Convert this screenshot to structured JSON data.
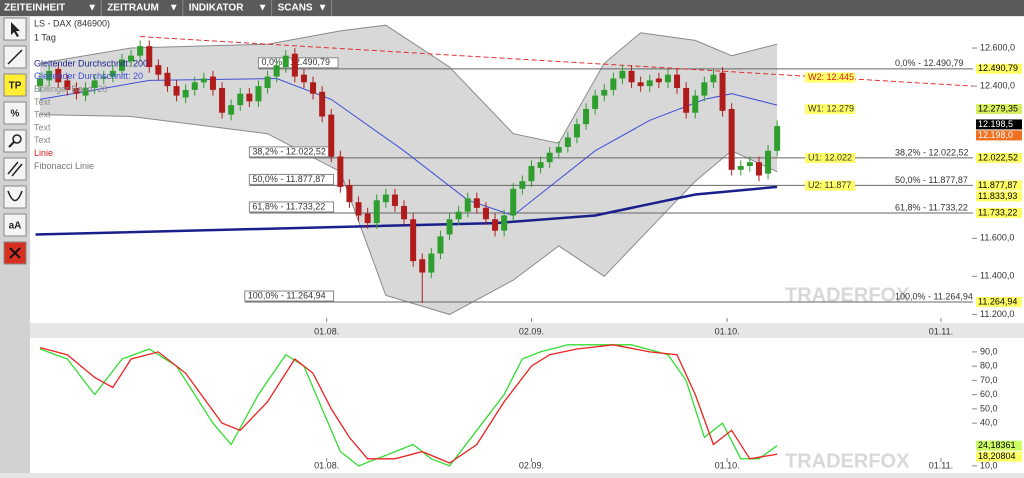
{
  "toolbar": {
    "menus": [
      "ZEITEINHEIT",
      "ZEITRAUM",
      "INDIKATOR",
      "SCANS"
    ],
    "arrow": "▼",
    "tools": [
      "TP",
      "%",
      "aA"
    ]
  },
  "watermark": "TRADERFOX",
  "chart_data": [
    {
      "type": "candlestick",
      "title": "LS - DAX (846900)",
      "subtitle": "1 Tag",
      "xlim": [
        -0.5,
        102.5
      ],
      "ylim": [
        11160,
        12760
      ],
      "xticks": [
        {
          "value": 31.5,
          "label": "01.08."
        },
        {
          "value": 54,
          "label": "02.09."
        },
        {
          "value": 75.5,
          "label": "01.10."
        },
        {
          "value": 99,
          "label": "01.11."
        }
      ],
      "yticks": [
        {
          "value": 12600,
          "label": "12.600,0"
        },
        {
          "value": 12400,
          "label": "12.400,0"
        },
        {
          "value": 11600,
          "label": "11.600,0"
        },
        {
          "value": 11400,
          "label": "11.400,0"
        },
        {
          "value": 11200,
          "label": "11.200,0"
        }
      ],
      "up_color": "#2e9e2e",
      "down_color": "#b01c1c",
      "candles": {
        "open": [
          12400,
          12430,
          12490,
          12430,
          12390,
          12350,
          12390,
          12440,
          12450,
          12480,
          12530,
          12560,
          12610,
          12510,
          12470,
          12400,
          12340,
          12380,
          12420,
          12450,
          12390,
          12250,
          12300,
          12360,
          12320,
          12390,
          12450,
          12500,
          12570,
          12460,
          12420,
          12370,
          12250,
          12030,
          11880,
          11790,
          11730,
          11680,
          11790,
          11830,
          11770,
          11700,
          11490,
          11420,
          11520,
          11620,
          11700,
          11740,
          11810,
          11760,
          11700,
          11640,
          11720,
          11860,
          11900,
          11970,
          12000,
          12050,
          12080,
          12130,
          12200,
          12280,
          12350,
          12380,
          12440,
          12480,
          12420,
          12400,
          12440,
          12420,
          12460,
          12390,
          12260,
          12350,
          12420,
          12470,
          12280,
          11960,
          11980,
          12000,
          11940,
          12060
        ],
        "high": [
          12470,
          12510,
          12520,
          12460,
          12420,
          12420,
          12460,
          12480,
          12510,
          12570,
          12590,
          12640,
          12640,
          12540,
          12500,
          12430,
          12410,
          12450,
          12470,
          12480,
          12420,
          12330,
          12390,
          12390,
          12430,
          12480,
          12540,
          12590,
          12600,
          12490,
          12450,
          12400,
          12280,
          12060,
          11910,
          11820,
          11760,
          11830,
          11860,
          11860,
          11800,
          11730,
          11520,
          11550,
          11640,
          11730,
          11770,
          11840,
          11840,
          11790,
          11730,
          11750,
          11890,
          11930,
          12010,
          12030,
          12080,
          12110,
          12160,
          12230,
          12310,
          12380,
          12410,
          12470,
          12510,
          12510,
          12450,
          12460,
          12470,
          12490,
          12490,
          12420,
          12380,
          12450,
          12490,
          12500,
          12310,
          12010,
          12030,
          12030,
          12090,
          12220
        ],
        "low": [
          12370,
          12400,
          12390,
          12350,
          12330,
          12320,
          12360,
          12410,
          12420,
          12450,
          12500,
          12530,
          12470,
          12430,
          12370,
          12320,
          12310,
          12350,
          12390,
          12350,
          12230,
          12220,
          12270,
          12290,
          12290,
          12360,
          12420,
          12470,
          12420,
          12390,
          12330,
          12210,
          12000,
          11840,
          11760,
          11690,
          11650,
          11650,
          11760,
          11740,
          11670,
          11450,
          11260,
          11390,
          11490,
          11590,
          11670,
          11710,
          11730,
          11670,
          11610,
          11610,
          11690,
          11830,
          11870,
          11940,
          11970,
          12020,
          12050,
          12100,
          12170,
          12250,
          12320,
          12350,
          12410,
          12390,
          12370,
          12370,
          12390,
          12390,
          12360,
          12230,
          12230,
          12320,
          12390,
          12240,
          11930,
          11930,
          11950,
          11900,
          11910,
          12030
        ],
        "close": [
          12440,
          12480,
          12420,
          12380,
          12360,
          12390,
          12430,
          12450,
          12480,
          12540,
          12560,
          12610,
          12500,
          12460,
          12400,
          12350,
          12380,
          12420,
          12440,
          12380,
          12260,
          12300,
          12360,
          12320,
          12400,
          12450,
          12510,
          12560,
          12450,
          12420,
          12360,
          12240,
          12030,
          11870,
          11790,
          11720,
          11680,
          11800,
          11830,
          11770,
          11700,
          11480,
          11420,
          11520,
          11610,
          11700,
          11740,
          11810,
          11760,
          11700,
          11640,
          11720,
          11860,
          11900,
          11980,
          12000,
          12050,
          12080,
          12130,
          12200,
          12280,
          12350,
          12380,
          12440,
          12480,
          12420,
          12400,
          12430,
          12420,
          12460,
          12390,
          12260,
          12350,
          12420,
          12460,
          12270,
          11960,
          11980,
          12000,
          11930,
          12060,
          12190
        ]
      },
      "bollinger": {
        "name": "Bollinger Band: 20",
        "color": "#8a8a8a",
        "fill": "#d4d4d4",
        "x": [
          0,
          10,
          25,
          33,
          38,
          45,
          52,
          57,
          62,
          66,
          72,
          76,
          81
        ],
        "upper": [
          12520,
          12600,
          12620,
          12690,
          12720,
          12500,
          12150,
          12100,
          12520,
          12680,
          12640,
          12560,
          12620
        ],
        "lower": [
          12250,
          12240,
          12150,
          11950,
          11300,
          11200,
          11380,
          11560,
          11400,
          11600,
          11900,
          12060,
          11950
        ]
      },
      "series": [
        {
          "name": "Gleitender Durchschnitt: 200",
          "color": "#1a1f8c",
          "width": 2.5,
          "x": [
            -0.5,
            50,
            61,
            72,
            81
          ],
          "values": [
            11620,
            11680,
            11720,
            11830,
            11870
          ]
        },
        {
          "name": "Gleitender Durchschnitt: 20",
          "color": "#3f4fd8",
          "width": 1,
          "x": [
            0,
            12,
            26,
            32,
            40,
            47,
            52,
            61,
            67,
            73,
            76,
            81
          ],
          "values": [
            12330,
            12430,
            12440,
            12330,
            12060,
            11800,
            11720,
            12060,
            12220,
            12330,
            12360,
            12300
          ]
        }
      ],
      "legend_extra": [
        {
          "name": "Text",
          "color": "#8a8a8a"
        },
        {
          "name": "Text",
          "color": "#8a8a8a"
        },
        {
          "name": "Text",
          "color": "#8a8a8a"
        },
        {
          "name": "Text",
          "color": "#8a8a8a"
        },
        {
          "name": "Linie",
          "color": "#d42020"
        },
        {
          "name": "Fibonacci Linie",
          "color": "#777777"
        }
      ],
      "trendline": {
        "color": "#e03030",
        "x": [
          11,
          102.5
        ],
        "values": [
          12660,
          12400
        ]
      },
      "fibonacci": [
        {
          "label": "0,0% - 12.490,79",
          "value": 12490.79,
          "start": 24
        },
        {
          "label": "38,2% - 12.022,52",
          "value": 12022.52,
          "start": 23
        },
        {
          "label": "50,0% - 11.877,87",
          "value": 11877.87,
          "start": 23
        },
        {
          "label": "61,8% - 11.733,22",
          "value": 11733.22,
          "start": 23
        },
        {
          "label": "100,0% - 11.264,94",
          "value": 11264.94,
          "start": 22.5
        }
      ],
      "levels": [
        {
          "label": "W2: 12.445",
          "value": 12445,
          "color": "#ffff66",
          "text_color": "#d42020"
        },
        {
          "label": "W1: 12.279",
          "value": 12279,
          "color": "#ffff66",
          "text_color": "#333333"
        },
        {
          "label": "U1: 12.022",
          "value": 12022,
          "color": "#ffff66",
          "text_color": "#333333"
        },
        {
          "label": "U2: 11.877",
          "value": 11877,
          "color": "#ffff66",
          "text_color": "#333333"
        }
      ],
      "price_tags": [
        {
          "label": "12.490,79",
          "value": 12490.79,
          "color": "#ffff66",
          "text_color": "#000000"
        },
        {
          "label": "12.279,35",
          "value": 12279.35,
          "color": "#d8f060",
          "text_color": "#000000"
        },
        {
          "label": "12.198,5",
          "value": 12198.5,
          "color": "#000000",
          "text_color": "#ffffff"
        },
        {
          "label": "12.198,0",
          "value": 12198.0,
          "color": "#f07020",
          "text_color": "#ffffff"
        },
        {
          "label": "12.022,52",
          "value": 12022.52,
          "color": "#ffff66",
          "text_color": "#000000"
        },
        {
          "label": "11.877,87",
          "value": 11877.87,
          "color": "#ffff66",
          "text_color": "#000000"
        },
        {
          "label": "11.833,93",
          "value": 11833.93,
          "color": "#ffff66",
          "text_color": "#000000"
        },
        {
          "label": "11.733,22",
          "value": 11733.22,
          "color": "#ffff66",
          "text_color": "#000000"
        },
        {
          "label": "11.264,94",
          "value": 11264.94,
          "color": "#ffff66",
          "text_color": "#000000"
        }
      ]
    },
    {
      "type": "line",
      "xlim": [
        -0.5,
        102.5
      ],
      "ylim": [
        5,
        98
      ],
      "xticks": [
        {
          "value": 31.5,
          "label": "01.08."
        },
        {
          "value": 54,
          "label": "02.09."
        },
        {
          "value": 75.5,
          "label": "01.10."
        },
        {
          "value": 99,
          "label": "01.11."
        }
      ],
      "yticks": [
        {
          "value": 90,
          "label": "90,0"
        },
        {
          "value": 80,
          "label": "80,0"
        },
        {
          "value": 70,
          "label": "70,0"
        },
        {
          "value": 60,
          "label": "60,0"
        },
        {
          "value": 50,
          "label": "50,0"
        },
        {
          "value": 40,
          "label": "40,0"
        },
        {
          "value": 10,
          "label": "10,0"
        }
      ],
      "series": [
        {
          "color": "#33dd33",
          "x": [
            0,
            3,
            6,
            9,
            12,
            15,
            19,
            21,
            24,
            27,
            29,
            31,
            33,
            35,
            37,
            41,
            43,
            45,
            48,
            51,
            53,
            55,
            58,
            61,
            65,
            69,
            71,
            73,
            75,
            77,
            79,
            81
          ],
          "values": [
            92,
            85,
            60,
            85,
            92,
            80,
            40,
            25,
            60,
            88,
            80,
            50,
            20,
            10,
            15,
            25,
            15,
            10,
            35,
            60,
            85,
            90,
            95,
            95,
            95,
            88,
            70,
            30,
            40,
            15,
            15,
            24.18361
          ]
        },
        {
          "color": "#ee2222",
          "x": [
            0,
            3,
            6,
            8,
            10,
            13,
            16,
            20,
            22,
            25,
            28,
            30,
            32,
            34,
            36,
            39,
            42,
            45,
            48,
            51,
            54,
            56,
            59,
            63,
            67,
            70,
            72,
            74,
            76,
            78,
            81
          ],
          "values": [
            93,
            88,
            72,
            65,
            85,
            90,
            75,
            40,
            35,
            55,
            85,
            75,
            50,
            30,
            15,
            15,
            20,
            12,
            25,
            55,
            80,
            88,
            92,
            95,
            90,
            88,
            60,
            25,
            35,
            15,
            18.20804
          ]
        }
      ],
      "value_tags": [
        {
          "label": "24,18361",
          "value": 24.18361,
          "color": "#ccff66"
        },
        {
          "label": "18,20804",
          "value": 18.20804,
          "color": "#ffff66"
        }
      ]
    }
  ]
}
